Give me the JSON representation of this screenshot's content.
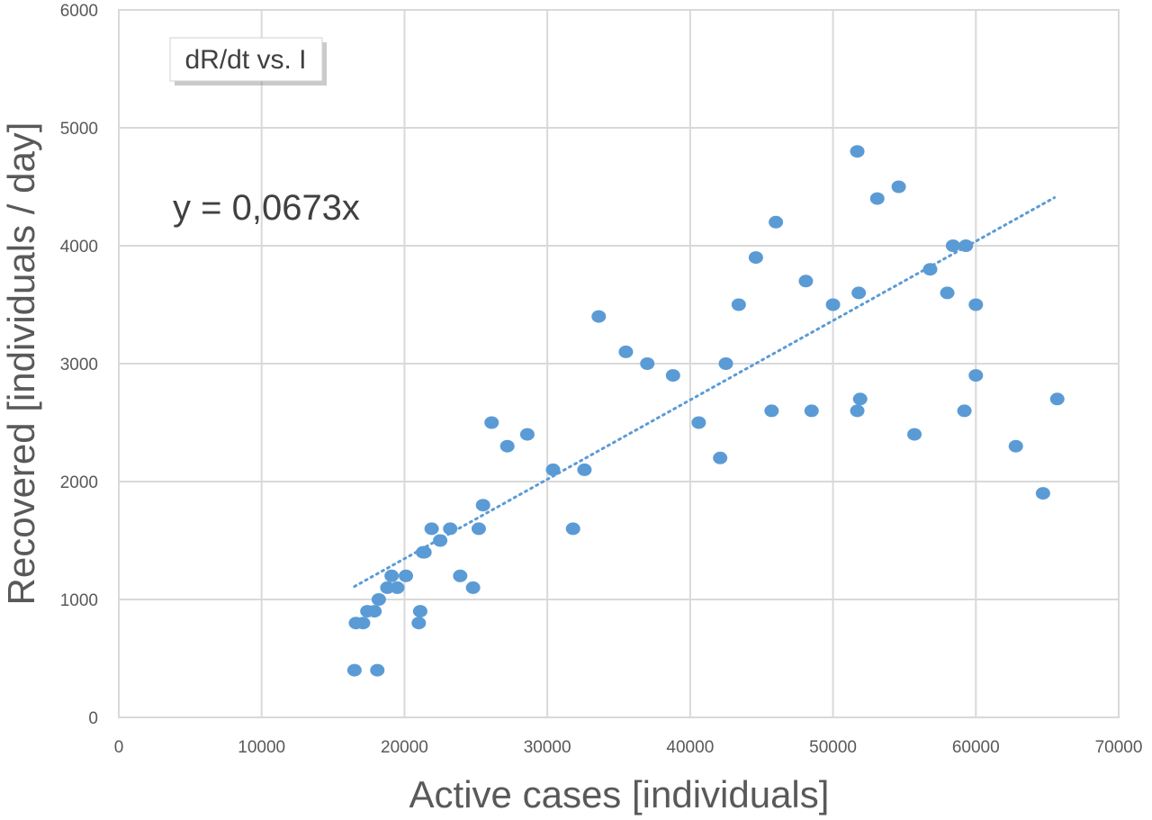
{
  "chart_data": {
    "type": "scatter",
    "title": "",
    "xlabel": "Active cases [individuals]",
    "ylabel": "Recovered [individuals / day]",
    "xlim": [
      0,
      70000
    ],
    "ylim": [
      0,
      6000
    ],
    "x_ticks": [
      0,
      10000,
      20000,
      30000,
      40000,
      50000,
      60000,
      70000
    ],
    "y_ticks": [
      0,
      1000,
      2000,
      3000,
      4000,
      5000,
      6000
    ],
    "x_tick_labels": [
      "0",
      "10000",
      "20000",
      "30000",
      "40000",
      "50000",
      "60000",
      "70000"
    ],
    "y_tick_labels": [
      "0",
      "1000",
      "2000",
      "3000",
      "4000",
      "5000",
      "6000"
    ],
    "grid": true,
    "legend": {
      "label": "dR/dt vs. I",
      "position": "top-left"
    },
    "series": [
      {
        "name": "dR/dt vs. I",
        "color": "#5b9bd5",
        "points": [
          [
            16500,
            400
          ],
          [
            16600,
            800
          ],
          [
            17100,
            800
          ],
          [
            17400,
            900
          ],
          [
            17900,
            900
          ],
          [
            18100,
            400
          ],
          [
            18200,
            1000
          ],
          [
            18800,
            1100
          ],
          [
            19100,
            1200
          ],
          [
            19500,
            1100
          ],
          [
            20100,
            1200
          ],
          [
            21000,
            800
          ],
          [
            21100,
            900
          ],
          [
            21300,
            1400
          ],
          [
            21400,
            1400
          ],
          [
            21900,
            1600
          ],
          [
            22500,
            1500
          ],
          [
            23200,
            1600
          ],
          [
            23900,
            1200
          ],
          [
            24800,
            1100
          ],
          [
            25200,
            1600
          ],
          [
            25500,
            1800
          ],
          [
            26100,
            2500
          ],
          [
            27200,
            2300
          ],
          [
            28600,
            2400
          ],
          [
            30400,
            2100
          ],
          [
            31800,
            1600
          ],
          [
            32600,
            2100
          ],
          [
            33600,
            3400
          ],
          [
            35500,
            3100
          ],
          [
            37000,
            3000
          ],
          [
            38800,
            2900
          ],
          [
            40600,
            2500
          ],
          [
            42100,
            2200
          ],
          [
            42500,
            3000
          ],
          [
            43400,
            3500
          ],
          [
            44600,
            3900
          ],
          [
            45700,
            2600
          ],
          [
            46000,
            4200
          ],
          [
            48100,
            3700
          ],
          [
            48500,
            2600
          ],
          [
            50000,
            3500
          ],
          [
            51700,
            2600
          ],
          [
            51800,
            3600
          ],
          [
            51700,
            4800
          ],
          [
            51900,
            2700
          ],
          [
            53100,
            4400
          ],
          [
            54600,
            4500
          ],
          [
            55700,
            2400
          ],
          [
            56800,
            3800
          ],
          [
            58000,
            3600
          ],
          [
            58400,
            4000
          ],
          [
            59300,
            4000
          ],
          [
            59200,
            2600
          ],
          [
            60000,
            2900
          ],
          [
            60000,
            3500
          ],
          [
            62800,
            2300
          ],
          [
            64700,
            1900
          ],
          [
            65700,
            2700
          ]
        ]
      }
    ],
    "trendline": {
      "type": "linear",
      "equation": "y = 0,0673x",
      "slope": 0.0673,
      "intercept": 0,
      "x_range": [
        16500,
        65500
      ],
      "color": "#5b9bd5",
      "style": "dotted"
    }
  }
}
